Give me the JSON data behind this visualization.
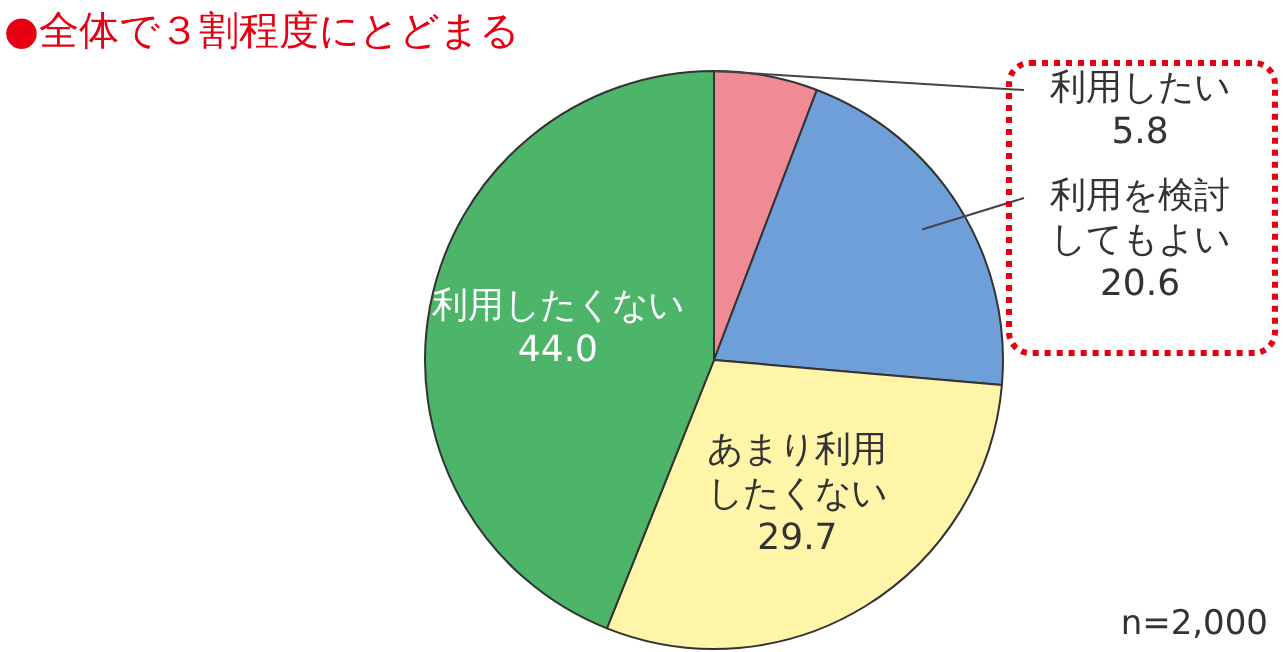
{
  "chart_data": {
    "type": "pie",
    "title": "●全体で３割程度にとどまる",
    "categories": [
      "利用したい",
      "利用を検討してもよい",
      "あまり利用したくない",
      "利用したくない"
    ],
    "values": [
      5.8,
      20.6,
      29.7,
      44.0
    ],
    "colors": [
      "#f08a94",
      "#6f9fd8",
      "#fff5a8",
      "#4db56a"
    ],
    "value_labels": [
      "5.8",
      "20.6",
      "29.7",
      "44.0"
    ],
    "legend": false,
    "annotations": [
      "n=2,000"
    ]
  }
}
